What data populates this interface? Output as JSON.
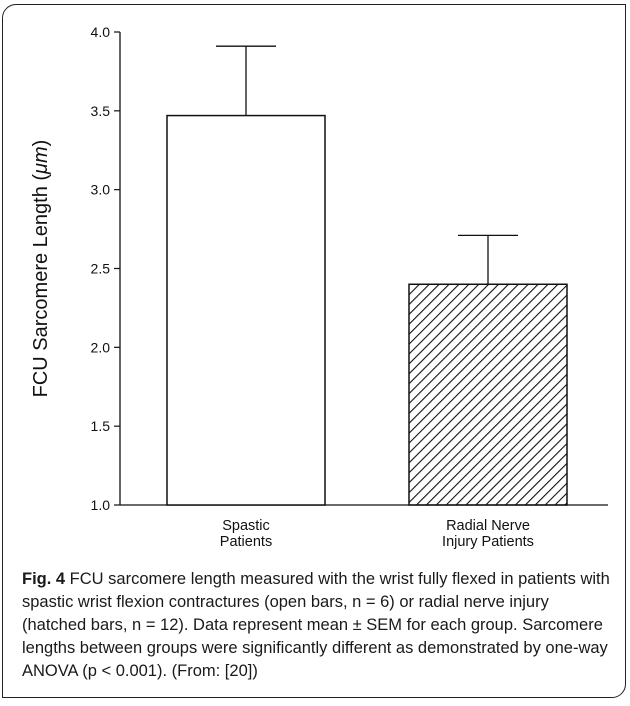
{
  "chart_data": {
    "type": "bar",
    "categories": [
      [
        "Spastic",
        "Patients"
      ],
      [
        "Radial Nerve",
        "Injury Patients"
      ]
    ],
    "values": [
      3.47,
      2.4
    ],
    "errors": [
      0.44,
      0.31
    ],
    "fills": [
      "open",
      "hatched"
    ],
    "ylabel_prefix": "FCU Sarcomere Length (",
    "ylabel_unit": "μm",
    "ylabel_suffix": ")",
    "ylim": [
      1.0,
      4.0
    ],
    "yticks": [
      "1.0",
      "1.5",
      "2.0",
      "2.5",
      "3.0",
      "3.5",
      "4.0"
    ],
    "grid": false
  },
  "caption": {
    "label": "Fig. 4",
    "text": " FCU sarcomere length measured with the wrist fully flexed in patients with spastic wrist flexion contractures (open bars, n = 6) or radial nerve injury (hatched bars, n = 12). Data represent mean ± SEM for each group. Sarcomere lengths between groups were significantly different as demonstrated by one-way ANOVA (p < 0.001). (From: [20])"
  }
}
